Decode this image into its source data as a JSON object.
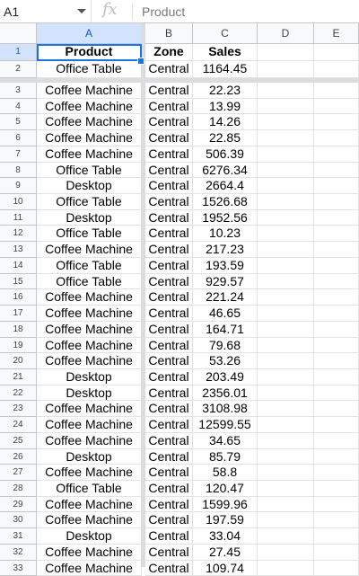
{
  "formula_bar": {
    "cell_ref": "A1",
    "fx_symbol": "fx",
    "content": "Product"
  },
  "columns": [
    "A",
    "B",
    "C",
    "D",
    "E"
  ],
  "header_row": {
    "num": "1",
    "product": "Product",
    "zone": "Zone",
    "sales": "Sales"
  },
  "rows": [
    {
      "num": "2",
      "product": "Office Table",
      "zone": "Central",
      "sales": "1164.45"
    },
    {
      "num": "3",
      "product": "Coffee Machine",
      "zone": "Central",
      "sales": "22.23"
    },
    {
      "num": "4",
      "product": "Coffee Machine",
      "zone": "Central",
      "sales": "13.99"
    },
    {
      "num": "5",
      "product": "Coffee Machine",
      "zone": "Central",
      "sales": "14.26"
    },
    {
      "num": "6",
      "product": "Coffee Machine",
      "zone": "Central",
      "sales": "22.85"
    },
    {
      "num": "7",
      "product": "Coffee Machine",
      "zone": "Central",
      "sales": "506.39"
    },
    {
      "num": "8",
      "product": "Office Table",
      "zone": "Central",
      "sales": "6276.34"
    },
    {
      "num": "9",
      "product": "Desktop",
      "zone": "Central",
      "sales": "2664.4"
    },
    {
      "num": "10",
      "product": "Office Table",
      "zone": "Central",
      "sales": "1526.68"
    },
    {
      "num": "11",
      "product": "Desktop",
      "zone": "Central",
      "sales": "1952.56"
    },
    {
      "num": "12",
      "product": "Office Table",
      "zone": "Central",
      "sales": "10.23"
    },
    {
      "num": "13",
      "product": "Coffee Machine",
      "zone": "Central",
      "sales": "217.23"
    },
    {
      "num": "14",
      "product": "Office Table",
      "zone": "Central",
      "sales": "193.59"
    },
    {
      "num": "15",
      "product": "Office Table",
      "zone": "Central",
      "sales": "929.57"
    },
    {
      "num": "16",
      "product": "Coffee Machine",
      "zone": "Central",
      "sales": "221.24"
    },
    {
      "num": "17",
      "product": "Coffee Machine",
      "zone": "Central",
      "sales": "46.65"
    },
    {
      "num": "18",
      "product": "Coffee Machine",
      "zone": "Central",
      "sales": "164.71"
    },
    {
      "num": "19",
      "product": "Coffee Machine",
      "zone": "Central",
      "sales": "79.68"
    },
    {
      "num": "20",
      "product": "Coffee Machine",
      "zone": "Central",
      "sales": "53.26"
    },
    {
      "num": "21",
      "product": "Desktop",
      "zone": "Central",
      "sales": "203.49"
    },
    {
      "num": "22",
      "product": "Desktop",
      "zone": "Central",
      "sales": "2356.01"
    },
    {
      "num": "23",
      "product": "Coffee Machine",
      "zone": "Central",
      "sales": "3108.98"
    },
    {
      "num": "24",
      "product": "Coffee Machine",
      "zone": "Central",
      "sales": "12599.55"
    },
    {
      "num": "25",
      "product": "Coffee Machine",
      "zone": "Central",
      "sales": "34.65"
    },
    {
      "num": "26",
      "product": "Desktop",
      "zone": "Central",
      "sales": "85.79"
    },
    {
      "num": "27",
      "product": "Coffee Machine",
      "zone": "Central",
      "sales": "58.8"
    },
    {
      "num": "28",
      "product": "Office Table",
      "zone": "Central",
      "sales": "120.47"
    },
    {
      "num": "29",
      "product": "Coffee Machine",
      "zone": "Central",
      "sales": "1599.96"
    },
    {
      "num": "30",
      "product": "Coffee Machine",
      "zone": "Central",
      "sales": "197.59"
    },
    {
      "num": "31",
      "product": "Desktop",
      "zone": "Central",
      "sales": "33.04"
    },
    {
      "num": "32",
      "product": "Coffee Machine",
      "zone": "Central",
      "sales": "27.45"
    },
    {
      "num": "33",
      "product": "Coffee Machine",
      "zone": "Central",
      "sales": "109.74"
    }
  ],
  "colors": {
    "selection": "#1a73e8",
    "header_selected": "#d3e3fd",
    "freeze_bar": "#dadce0"
  }
}
